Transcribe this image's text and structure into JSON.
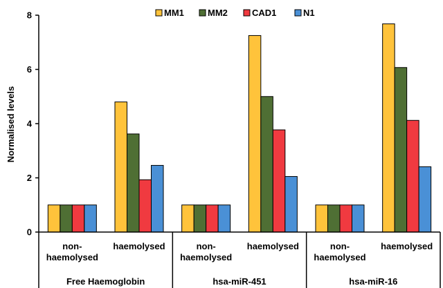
{
  "chart_data": {
    "type": "bar",
    "ylabel": "Normalised levels",
    "ylim": [
      0,
      8
    ],
    "yticks": [
      "0",
      "2",
      "4",
      "6",
      "8"
    ],
    "groups": [
      {
        "label": "Free Haemoglobin",
        "categories": [
          {
            "label_lines": [
              "non-",
              "haemolysed"
            ],
            "values": [
              1,
              1,
              1,
              1
            ]
          },
          {
            "label_lines": [
              "haemolysed"
            ],
            "values": [
              4.8,
              3.62,
              1.93,
              2.46
            ]
          }
        ]
      },
      {
        "label": "hsa-miR-451",
        "categories": [
          {
            "label_lines": [
              "non-",
              "haemolysed"
            ],
            "values": [
              1,
              1,
              1,
              1
            ]
          },
          {
            "label_lines": [
              "haemolysed"
            ],
            "values": [
              7.25,
              5.0,
              3.77,
              2.05
            ]
          }
        ]
      },
      {
        "label": "hsa-miR-16",
        "categories": [
          {
            "label_lines": [
              "non-",
              "haemolysed"
            ],
            "values": [
              1,
              1,
              1,
              1
            ]
          },
          {
            "label_lines": [
              "haemolysed"
            ],
            "values": [
              7.68,
              6.07,
              4.12,
              2.41
            ]
          }
        ]
      }
    ],
    "series": [
      {
        "name": "MM1",
        "color": "#FFC33B"
      },
      {
        "name": "MM2",
        "color": "#4F6F34"
      },
      {
        "name": "CAD1",
        "color": "#F03A40"
      },
      {
        "name": "N1",
        "color": "#4A90D6"
      }
    ],
    "legend_position": "top",
    "grid": false
  }
}
